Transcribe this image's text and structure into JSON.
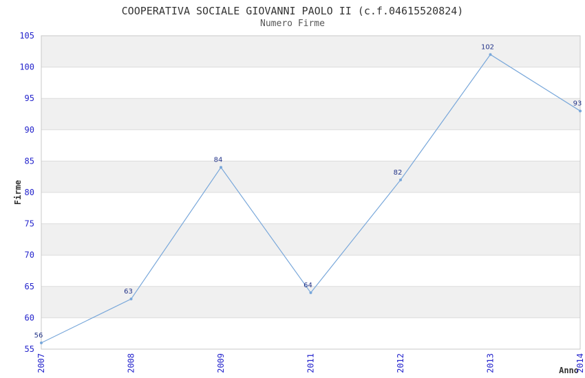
{
  "chart_data": {
    "type": "line",
    "title": "COOPERATIVA SOCIALE GIOVANNI PAOLO II (c.f.04615520824)",
    "subtitle": "Numero Firme",
    "xlabel": "Anno",
    "ylabel": "Firme",
    "categories": [
      "2007",
      "2008",
      "2009",
      "2011",
      "2012",
      "2013",
      "2014"
    ],
    "values": [
      56,
      63,
      84,
      64,
      82,
      102,
      93
    ],
    "ylim": [
      55,
      105
    ],
    "ytick_step": 5,
    "yticks": [
      55,
      60,
      65,
      70,
      75,
      80,
      85,
      90,
      95,
      100,
      105
    ],
    "grid": "horizontal-bands-alternating",
    "legend_position": "none",
    "colors": {
      "line": "#78a7da",
      "marker": "#78a7da",
      "tick_labels": "#2424cc",
      "point_labels": "#223388",
      "band_gray": "#f0f0f0",
      "band_white": "#ffffff",
      "grid_line": "#dcdcdc",
      "frame": "#c8c8c8",
      "title": "#333333",
      "subtitle": "#555555",
      "axis_titles": "#333333"
    }
  }
}
